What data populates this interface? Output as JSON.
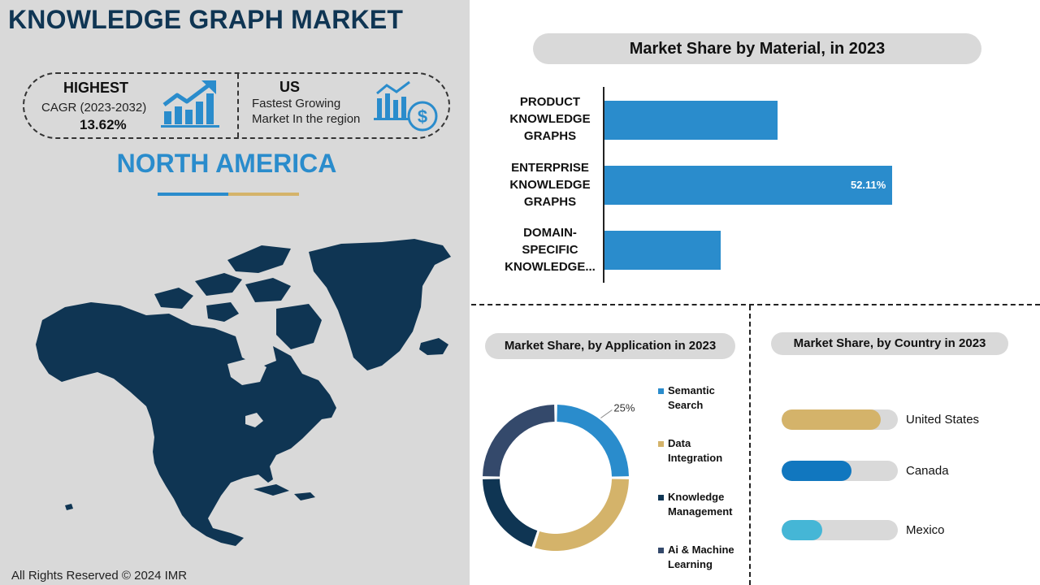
{
  "title": "KNOWLEDGE GRAPH MARKET",
  "highlights": {
    "highest_heading": "HIGHEST",
    "cagr_label": "CAGR (2023-2032)",
    "cagr_value": "13.62%",
    "cagr_icon": "growth-chart-icon",
    "country_heading": "US",
    "country_line1": "Fastest Growing",
    "country_line2": "Market In the region",
    "country_icon": "dollar-chart-icon"
  },
  "region": "NORTH AMERICA",
  "copyright": "All Rights Reserved © 2024 IMR",
  "colors": {
    "title": "#0f3553",
    "accent_blue": "#2a8ccc",
    "accent_gold": "#d4b36a",
    "map": "#0f3553",
    "panel_bg": "#d9d9d9"
  },
  "chart_data": [
    {
      "type": "bar",
      "orientation": "horizontal",
      "title": "Market Share by Material,  in 2023",
      "categories": [
        "PRODUCT KNOWLEDGE GRAPHS",
        "ENTERPRISE KNOWLEDGE GRAPHS",
        "DOMAIN-SPECIFIC KNOWLEDGE..."
      ],
      "category_lines": [
        [
          "PRODUCT",
          "KNOWLEDGE",
          "GRAPHS"
        ],
        [
          "ENTERPRISE",
          "KNOWLEDGE",
          "GRAPHS"
        ],
        [
          "DOMAIN-",
          "SPECIFIC",
          "KNOWLEDGE..."
        ]
      ],
      "values": [
        31.3,
        52.11,
        21.1
      ],
      "data_labels": [
        "",
        "52.11%",
        ""
      ],
      "xlim": [
        0,
        70
      ],
      "color": "#2a8ccc"
    },
    {
      "type": "pie",
      "style": "donut",
      "title": "Market Share, by Application in 2023",
      "labels": [
        "Semantic Search",
        "Data Integration",
        "Knowledge Management",
        "Ai & Machine Learning"
      ],
      "label_lines": [
        [
          "Semantic",
          "Search"
        ],
        [
          "Data",
          "Integration"
        ],
        [
          "Knowledge",
          "Management"
        ],
        [
          "Ai & Machine",
          "Learning"
        ]
      ],
      "values": [
        25,
        30,
        20,
        25
      ],
      "data_labels": [
        "25%",
        "",
        "",
        ""
      ],
      "colors": [
        "#2a8ccc",
        "#d4b36a",
        "#0f3553",
        "#34496b"
      ]
    },
    {
      "type": "bar",
      "orientation": "horizontal",
      "style": "progress",
      "title": "Market Share, by Country in 2023",
      "categories": [
        "United States",
        "Canada",
        "Mexico"
      ],
      "values": [
        85,
        60,
        35
      ],
      "xlim": [
        0,
        100
      ],
      "colors": [
        "#d4b36a",
        "#1177bf",
        "#45b6d6"
      ]
    }
  ]
}
